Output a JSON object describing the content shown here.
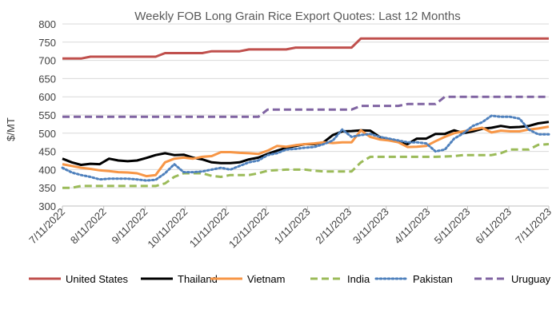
{
  "chart_data": {
    "type": "line",
    "title": "Weekly FOB Long Grain Rice Export Quotes: Last 12 Months",
    "ylabel": "$/MT",
    "xlabel": "",
    "ylim": [
      300,
      800
    ],
    "yticks": [
      300,
      350,
      400,
      450,
      500,
      550,
      600,
      650,
      700,
      750,
      800
    ],
    "xlim": [
      "7/11/2022",
      "7/11/2023"
    ],
    "xtick_labels": [
      "7/11/2022",
      "8/11/2022",
      "9/11/2022",
      "10/11/2022",
      "11/11/2022",
      "12/11/2022",
      "1/11/2023",
      "2/11/2023",
      "3/11/2023",
      "4/11/2023",
      "5/11/2023",
      "6/11/2023",
      "7/11/2023"
    ],
    "grid": "horizontal",
    "legend_position": "bottom",
    "series": [
      {
        "name": "United States",
        "color": "#C0504D",
        "dash": "solid",
        "points": [
          [
            "7/11/2022",
            705
          ],
          [
            "7/25/2022",
            705
          ],
          [
            "8/1/2022",
            710
          ],
          [
            "8/29/2022",
            710
          ],
          [
            "9/19/2022",
            710
          ],
          [
            "9/26/2022",
            720
          ],
          [
            "10/24/2022",
            720
          ],
          [
            "10/31/2022",
            725
          ],
          [
            "11/21/2022",
            725
          ],
          [
            "11/28/2022",
            730
          ],
          [
            "12/26/2022",
            730
          ],
          [
            "1/2/2023",
            735
          ],
          [
            "1/30/2023",
            735
          ],
          [
            "2/13/2023",
            735
          ],
          [
            "2/20/2023",
            760
          ],
          [
            "7/11/2023",
            760
          ]
        ]
      },
      {
        "name": "Thailand",
        "color": "#000000",
        "dash": "solid",
        "points": [
          [
            "7/11/2022",
            430
          ],
          [
            "7/18/2022",
            420
          ],
          [
            "7/25/2022",
            413
          ],
          [
            "8/1/2022",
            416
          ],
          [
            "8/8/2022",
            415
          ],
          [
            "8/15/2022",
            430
          ],
          [
            "8/22/2022",
            425
          ],
          [
            "8/29/2022",
            423
          ],
          [
            "9/5/2022",
            425
          ],
          [
            "9/12/2022",
            432
          ],
          [
            "9/19/2022",
            440
          ],
          [
            "9/26/2022",
            445
          ],
          [
            "10/3/2022",
            440
          ],
          [
            "10/10/2022",
            441
          ],
          [
            "10/17/2022",
            433
          ],
          [
            "10/24/2022",
            428
          ],
          [
            "10/31/2022",
            420
          ],
          [
            "11/7/2022",
            418
          ],
          [
            "11/14/2022",
            418
          ],
          [
            "11/21/2022",
            420
          ],
          [
            "11/28/2022",
            428
          ],
          [
            "12/5/2022",
            433
          ],
          [
            "12/12/2022",
            443
          ],
          [
            "12/19/2022",
            452
          ],
          [
            "12/26/2022",
            460
          ],
          [
            "1/2/2023",
            465
          ],
          [
            "1/9/2023",
            470
          ],
          [
            "1/16/2023",
            470
          ],
          [
            "1/23/2023",
            475
          ],
          [
            "1/30/2023",
            495
          ],
          [
            "2/6/2023",
            505
          ],
          [
            "2/13/2023",
            506
          ],
          [
            "2/20/2023",
            508
          ],
          [
            "2/27/2023",
            507
          ],
          [
            "3/6/2023",
            490
          ],
          [
            "3/13/2023",
            483
          ],
          [
            "3/20/2023",
            476
          ],
          [
            "3/27/2023",
            470
          ],
          [
            "4/3/2023",
            485
          ],
          [
            "4/10/2023",
            485
          ],
          [
            "4/17/2023",
            498
          ],
          [
            "4/24/2023",
            498
          ],
          [
            "5/1/2023",
            508
          ],
          [
            "5/8/2023",
            500
          ],
          [
            "5/15/2023",
            505
          ],
          [
            "5/22/2023",
            512
          ],
          [
            "5/29/2023",
            515
          ],
          [
            "6/5/2023",
            520
          ],
          [
            "6/12/2023",
            516
          ],
          [
            "6/19/2023",
            517
          ],
          [
            "6/26/2023",
            520
          ],
          [
            "7/3/2023",
            527
          ],
          [
            "7/11/2023",
            531
          ]
        ]
      },
      {
        "name": "Vietnam",
        "color": "#F79646",
        "dash": "solid",
        "points": [
          [
            "7/11/2022",
            415
          ],
          [
            "7/18/2022",
            410
          ],
          [
            "7/25/2022",
            405
          ],
          [
            "8/1/2022",
            402
          ],
          [
            "8/8/2022",
            398
          ],
          [
            "8/15/2022",
            396
          ],
          [
            "8/22/2022",
            393
          ],
          [
            "8/29/2022",
            392
          ],
          [
            "9/5/2022",
            390
          ],
          [
            "9/12/2022",
            382
          ],
          [
            "9/19/2022",
            385
          ],
          [
            "9/26/2022",
            420
          ],
          [
            "10/3/2022",
            430
          ],
          [
            "10/10/2022",
            433
          ],
          [
            "10/17/2022",
            430
          ],
          [
            "10/24/2022",
            435
          ],
          [
            "10/31/2022",
            437
          ],
          [
            "11/7/2022",
            448
          ],
          [
            "11/14/2022",
            448
          ],
          [
            "11/21/2022",
            446
          ],
          [
            "11/28/2022",
            445
          ],
          [
            "12/5/2022",
            443
          ],
          [
            "12/12/2022",
            452
          ],
          [
            "12/19/2022",
            465
          ],
          [
            "12/26/2022",
            463
          ],
          [
            "1/2/2023",
            467
          ],
          [
            "1/9/2023",
            470
          ],
          [
            "1/16/2023",
            472
          ],
          [
            "1/23/2023",
            475
          ],
          [
            "1/30/2023",
            473
          ],
          [
            "2/6/2023",
            475
          ],
          [
            "2/13/2023",
            475
          ],
          [
            "2/20/2023",
            508
          ],
          [
            "2/27/2023",
            490
          ],
          [
            "3/6/2023",
            483
          ],
          [
            "3/13/2023",
            480
          ],
          [
            "3/20/2023",
            475
          ],
          [
            "3/27/2023",
            462
          ],
          [
            "4/3/2023",
            463
          ],
          [
            "4/10/2023",
            465
          ],
          [
            "4/17/2023",
            478
          ],
          [
            "4/24/2023",
            490
          ],
          [
            "5/1/2023",
            500
          ],
          [
            "5/8/2023",
            505
          ],
          [
            "5/15/2023",
            510
          ],
          [
            "5/22/2023",
            515
          ],
          [
            "5/29/2023",
            502
          ],
          [
            "6/5/2023",
            507
          ],
          [
            "6/12/2023",
            505
          ],
          [
            "6/19/2023",
            505
          ],
          [
            "6/26/2023",
            510
          ],
          [
            "7/3/2023",
            513
          ],
          [
            "7/11/2023",
            518
          ]
        ]
      },
      {
        "name": "India",
        "color": "#9BBB59",
        "dash": "dashed",
        "points": [
          [
            "7/11/2022",
            350
          ],
          [
            "7/18/2022",
            350
          ],
          [
            "7/25/2022",
            355
          ],
          [
            "8/29/2022",
            355
          ],
          [
            "9/19/2022",
            355
          ],
          [
            "9/26/2022",
            362
          ],
          [
            "10/3/2022",
            380
          ],
          [
            "10/10/2022",
            390
          ],
          [
            "10/24/2022",
            390
          ],
          [
            "10/31/2022",
            383
          ],
          [
            "11/7/2022",
            380
          ],
          [
            "11/14/2022",
            385
          ],
          [
            "11/28/2022",
            385
          ],
          [
            "12/5/2022",
            390
          ],
          [
            "12/12/2022",
            397
          ],
          [
            "12/26/2022",
            400
          ],
          [
            "1/9/2023",
            400
          ],
          [
            "1/16/2023",
            397
          ],
          [
            "1/23/2023",
            395
          ],
          [
            "2/13/2023",
            395
          ],
          [
            "2/20/2023",
            420
          ],
          [
            "2/27/2023",
            435
          ],
          [
            "3/27/2023",
            435
          ],
          [
            "4/17/2023",
            435
          ],
          [
            "5/1/2023",
            437
          ],
          [
            "5/8/2023",
            440
          ],
          [
            "5/29/2023",
            440
          ],
          [
            "6/5/2023",
            445
          ],
          [
            "6/12/2023",
            455
          ],
          [
            "6/26/2023",
            455
          ],
          [
            "7/3/2023",
            468
          ],
          [
            "7/11/2023",
            470
          ]
        ]
      },
      {
        "name": "Pakistan",
        "color": "#4F81BD",
        "dash": "dotted",
        "points": [
          [
            "7/11/2022",
            405
          ],
          [
            "7/18/2022",
            392
          ],
          [
            "7/25/2022",
            385
          ],
          [
            "8/1/2022",
            380
          ],
          [
            "8/8/2022",
            373
          ],
          [
            "8/15/2022",
            375
          ],
          [
            "8/22/2022",
            375
          ],
          [
            "8/29/2022",
            375
          ],
          [
            "9/5/2022",
            373
          ],
          [
            "9/12/2022",
            370
          ],
          [
            "9/19/2022",
            372
          ],
          [
            "9/26/2022",
            390
          ],
          [
            "10/3/2022",
            415
          ],
          [
            "10/10/2022",
            393
          ],
          [
            "10/17/2022",
            393
          ],
          [
            "10/24/2022",
            395
          ],
          [
            "10/31/2022",
            400
          ],
          [
            "11/7/2022",
            405
          ],
          [
            "11/14/2022",
            400
          ],
          [
            "11/21/2022",
            410
          ],
          [
            "11/28/2022",
            420
          ],
          [
            "12/5/2022",
            425
          ],
          [
            "12/12/2022",
            440
          ],
          [
            "12/19/2022",
            445
          ],
          [
            "12/26/2022",
            455
          ],
          [
            "1/2/2023",
            457
          ],
          [
            "1/9/2023",
            460
          ],
          [
            "1/16/2023",
            462
          ],
          [
            "1/23/2023",
            470
          ],
          [
            "1/30/2023",
            480
          ],
          [
            "2/6/2023",
            510
          ],
          [
            "2/13/2023",
            490
          ],
          [
            "2/20/2023",
            495
          ],
          [
            "2/27/2023",
            498
          ],
          [
            "3/6/2023",
            490
          ],
          [
            "3/13/2023",
            485
          ],
          [
            "3/20/2023",
            480
          ],
          [
            "3/27/2023",
            475
          ],
          [
            "4/3/2023",
            475
          ],
          [
            "4/10/2023",
            472
          ],
          [
            "4/17/2023",
            450
          ],
          [
            "4/24/2023",
            455
          ],
          [
            "5/1/2023",
            485
          ],
          [
            "5/8/2023",
            500
          ],
          [
            "5/15/2023",
            520
          ],
          [
            "5/22/2023",
            530
          ],
          [
            "5/29/2023",
            548
          ],
          [
            "6/5/2023",
            545
          ],
          [
            "6/12/2023",
            545
          ],
          [
            "6/19/2023",
            540
          ],
          [
            "6/26/2023",
            510
          ],
          [
            "7/3/2023",
            497
          ],
          [
            "7/11/2023",
            497
          ]
        ]
      },
      {
        "name": "Uruguay",
        "color": "#8064A2",
        "dash": "dashed",
        "points": [
          [
            "7/11/2022",
            545
          ],
          [
            "12/5/2022",
            545
          ],
          [
            "12/12/2022",
            565
          ],
          [
            "2/13/2023",
            565
          ],
          [
            "2/20/2023",
            575
          ],
          [
            "3/20/2023",
            575
          ],
          [
            "3/27/2023",
            580
          ],
          [
            "4/17/2023",
            580
          ],
          [
            "4/24/2023",
            600
          ],
          [
            "7/11/2023",
            600
          ]
        ]
      }
    ]
  }
}
